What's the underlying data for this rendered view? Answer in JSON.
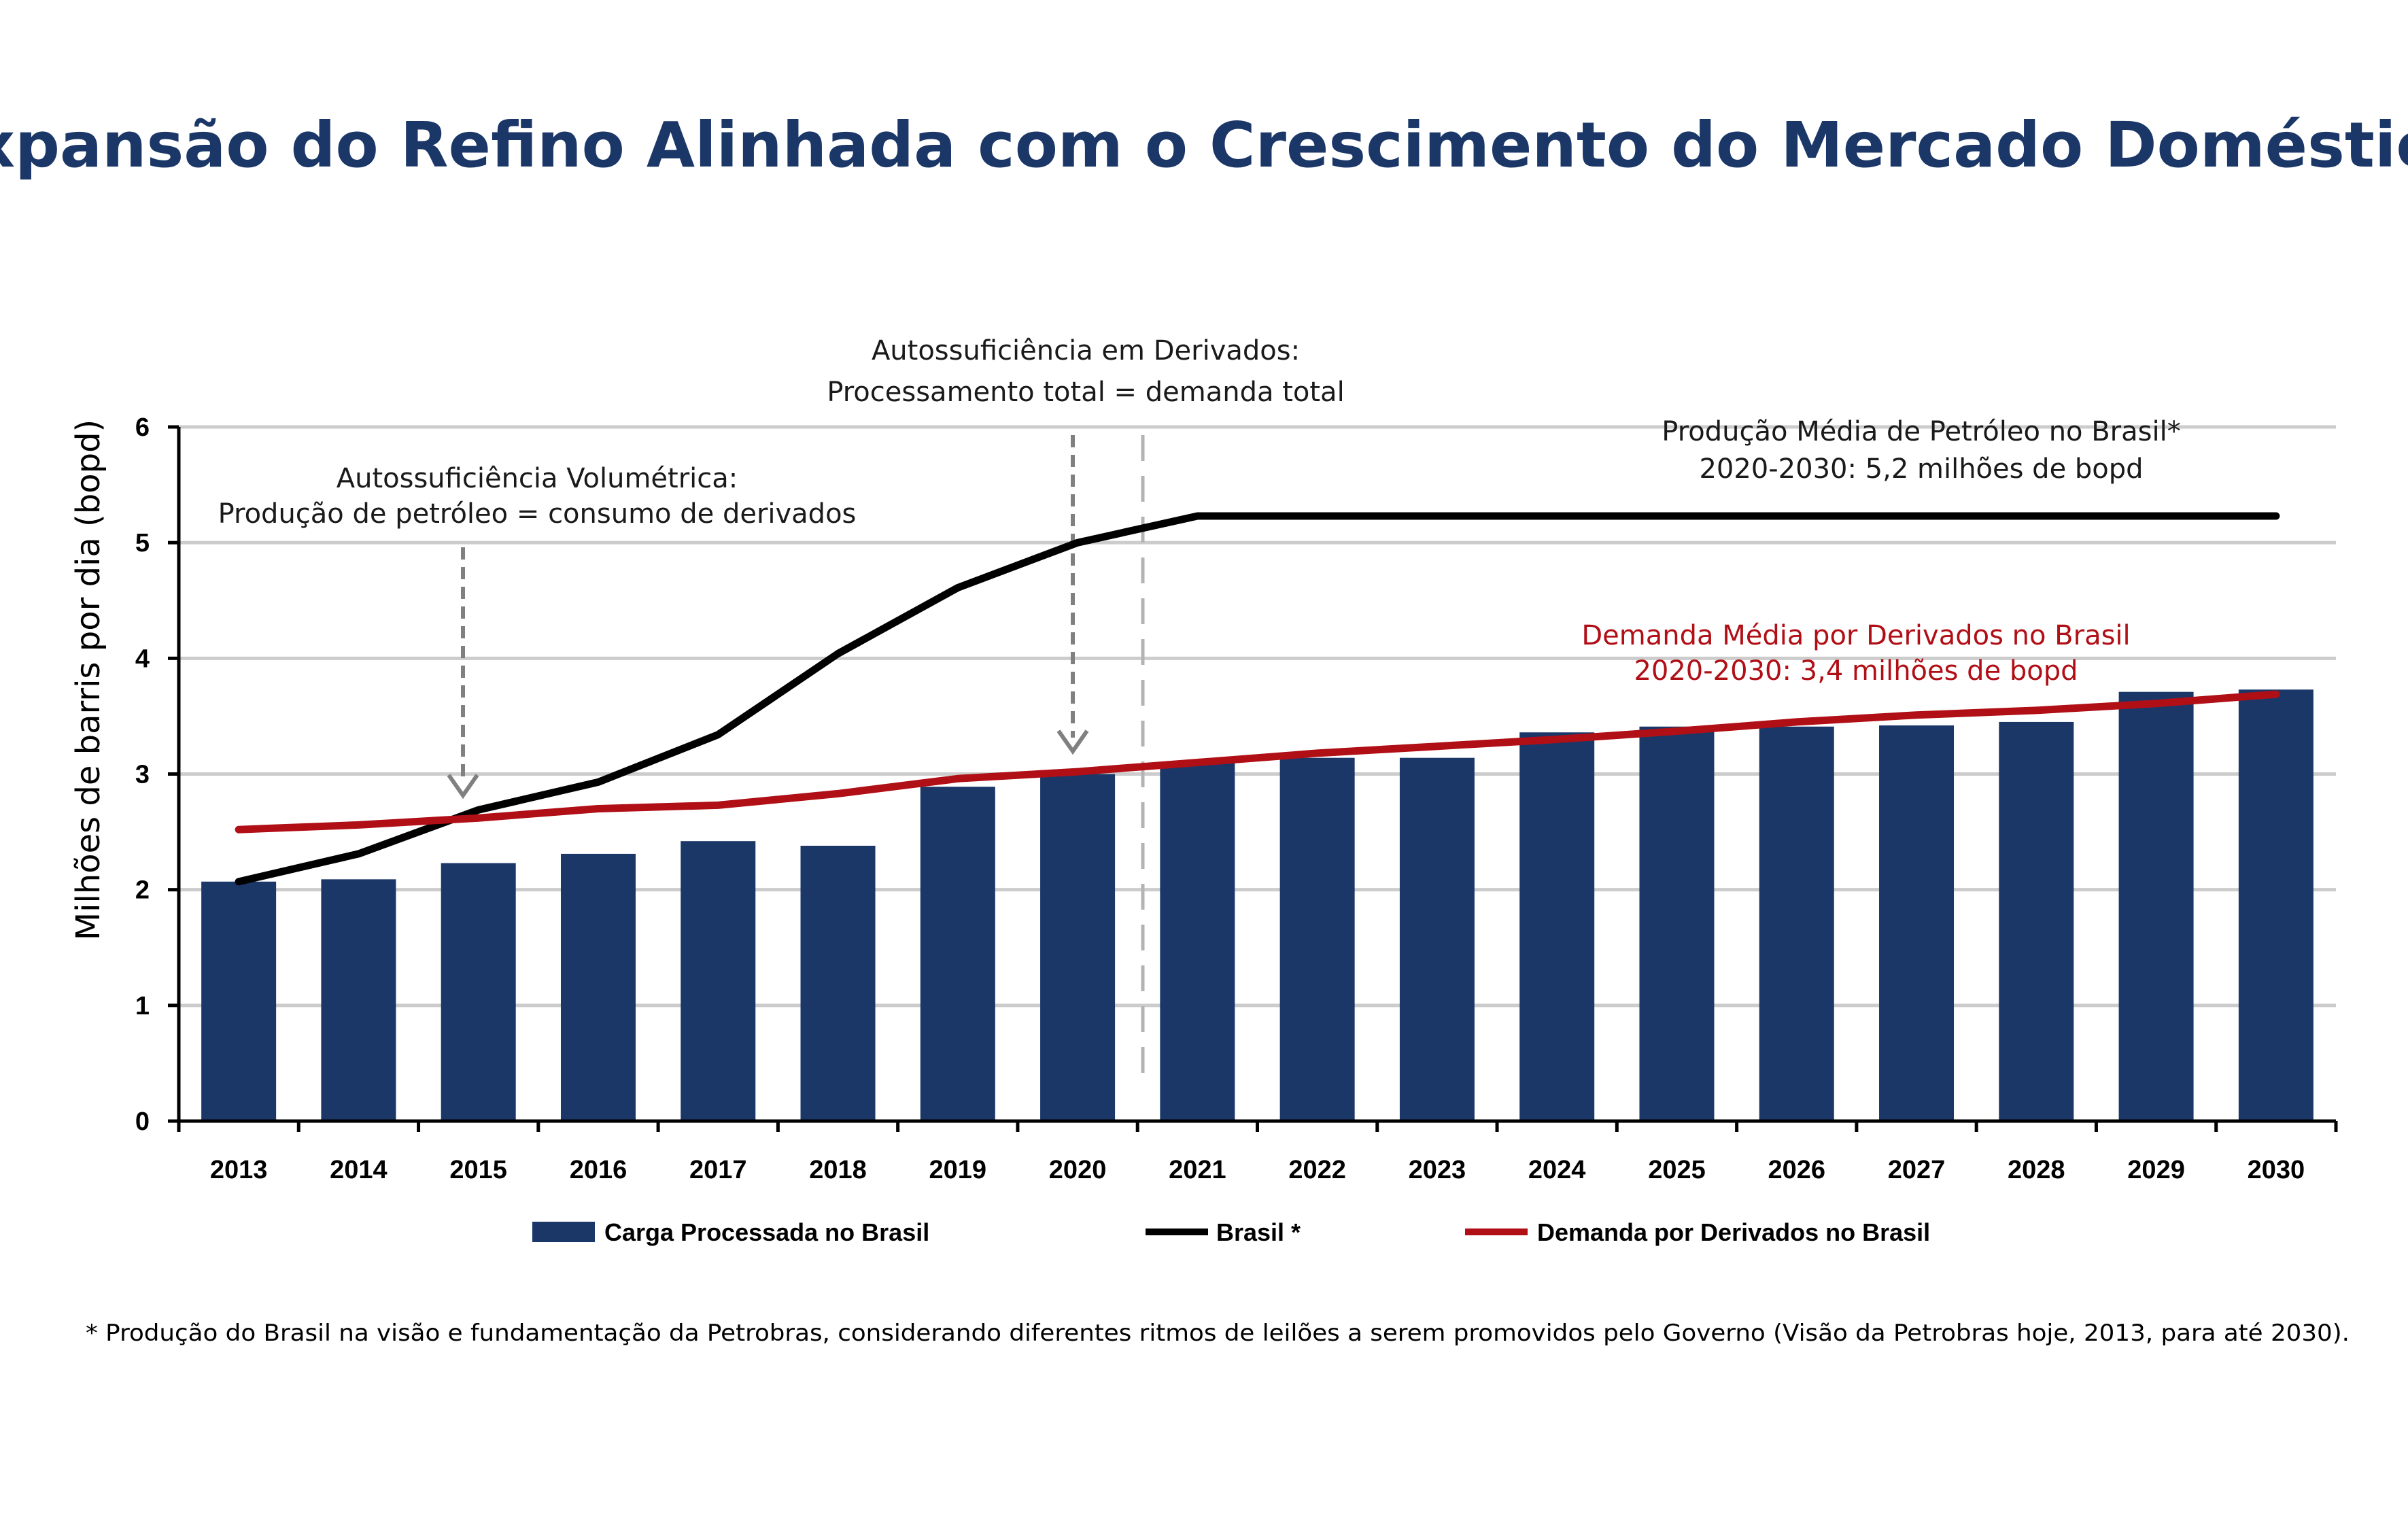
{
  "title": "Expansão do Refino Alinhada com o Crescimento do Mercado Doméstico",
  "colors": {
    "title": "#1b3768",
    "bars": "#1b3768",
    "brasil_line": "#000000",
    "demanda_line": "#b00f16",
    "grid": "#cccccc",
    "arrow": "#808080",
    "divider": "#b3b3b3"
  },
  "annotations": {
    "volumetrica": {
      "line1": "Autossuficiência Volumétrica:",
      "line2": "Produção de petróleo = consumo de derivados"
    },
    "derivados": {
      "line1": "Autossuficiência em Derivados:",
      "line2": "Processamento total = demanda total"
    },
    "producao_media": {
      "line1": "Produção Média de Petróleo no Brasil*",
      "line2": "2020-2030: 5,2 milhões de bopd"
    },
    "demanda_media": {
      "line1": "Demanda Média por Derivados no Brasil",
      "line2": "2020-2030: 3,4 milhões de bopd"
    }
  },
  "legend": {
    "bars": "Carga Processada  no Brasil",
    "brasil": "Brasil *",
    "demanda": "Demanda por Derivados no Brasil"
  },
  "footnote": "* Produção do Brasil na visão e fundamentação da Petrobras, considerando diferentes ritmos de leilões a serem promovidos pelo Governo (Visão da Petrobras hoje, 2013, para até 2030).",
  "chart_data": {
    "type": "bar",
    "title": "Expansão do Refino Alinhada com o Crescimento do Mercado Doméstico",
    "xlabel": "",
    "ylabel": "Milhões de barris  por dia (bopd)",
    "ylim": [
      0,
      6
    ],
    "yticks": [
      "0",
      "1",
      "2",
      "3",
      "4",
      "5",
      "6"
    ],
    "grid": true,
    "legend_position": "bottom",
    "categories": [
      "2013",
      "2014",
      "2015",
      "2016",
      "2017",
      "2018",
      "2019",
      "2020",
      "2021",
      "2022",
      "2023",
      "2024",
      "2025",
      "2026",
      "2027",
      "2028",
      "2029",
      "2030"
    ],
    "series": [
      {
        "name": "Carga Processada  no Brasil",
        "type": "bar",
        "values": [
          2.07,
          2.09,
          2.23,
          2.31,
          2.42,
          2.38,
          2.89,
          3.0,
          3.1,
          3.14,
          3.14,
          3.36,
          3.41,
          3.41,
          3.42,
          3.45,
          3.71,
          3.73
        ]
      },
      {
        "name": "Brasil *",
        "type": "line",
        "values": [
          2.07,
          2.31,
          2.69,
          2.93,
          3.34,
          4.04,
          4.61,
          5.0,
          5.23,
          5.23,
          5.23,
          5.23,
          5.23,
          5.23,
          5.23,
          5.23,
          5.23,
          5.23
        ]
      },
      {
        "name": "Demanda por Derivados no Brasil",
        "type": "line",
        "values": [
          2.52,
          2.56,
          2.62,
          2.7,
          2.73,
          2.83,
          2.96,
          3.02,
          3.1,
          3.18,
          3.24,
          3.3,
          3.37,
          3.45,
          3.51,
          3.55,
          3.61,
          3.69
        ]
      }
    ]
  }
}
